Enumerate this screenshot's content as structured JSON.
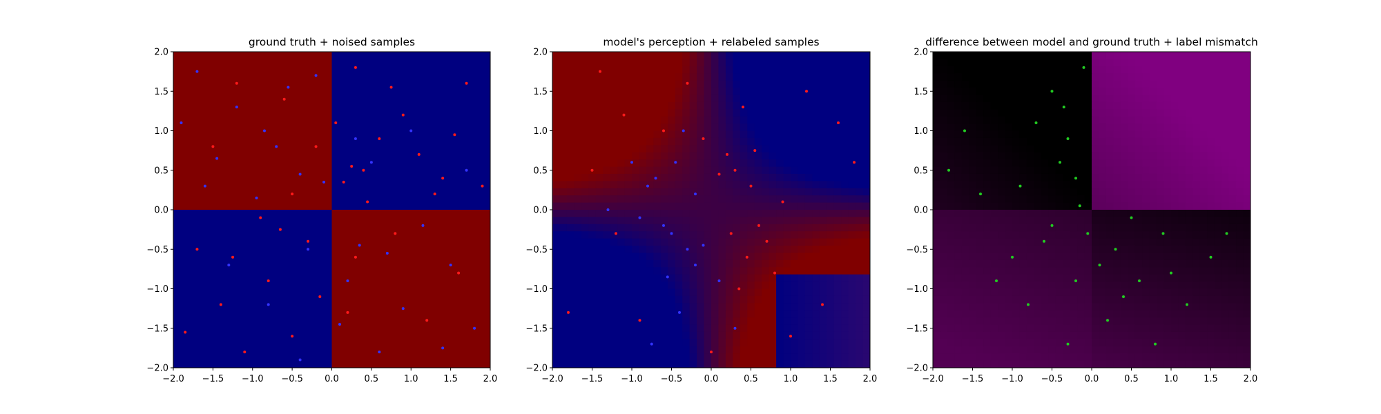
{
  "figure": {
    "background": "#ffffff"
  },
  "chart_data": [
    {
      "type": "scatter",
      "title": "ground truth + noised samples",
      "xlim": [
        -2.0,
        2.0
      ],
      "ylim": [
        -2.0,
        2.0
      ],
      "xticks": [
        "−2.0",
        "−1.5",
        "−1.0",
        "−0.5",
        "0.0",
        "0.5",
        "1.0",
        "1.5",
        "2.0"
      ],
      "yticks": [
        "−2.0",
        "−1.5",
        "−1.0",
        "−0.5",
        "0.0",
        "0.5",
        "1.0",
        "1.5",
        "2.0"
      ],
      "background": {
        "kind": "xor-quadrants",
        "quadrant_colors": {
          "top_left": "#800000",
          "top_right": "#000080",
          "bottom_left": "#000080",
          "bottom_right": "#800000"
        }
      },
      "series": [
        {
          "color": "#ff1a1a",
          "points": [
            [
              0.15,
              0.35
            ],
            [
              0.3,
              1.8
            ],
            [
              0.6,
              0.9
            ],
            [
              0.9,
              1.2
            ],
            [
              1.4,
              0.4
            ],
            [
              1.7,
              1.6
            ],
            [
              0.45,
              0.1
            ],
            [
              1.1,
              0.7
            ],
            [
              0.25,
              0.55
            ],
            [
              0.75,
              1.55
            ],
            [
              1.55,
              0.95
            ],
            [
              1.9,
              0.3
            ],
            [
              -0.3,
              -0.4
            ],
            [
              -0.8,
              -0.9
            ],
            [
              -1.4,
              -1.2
            ],
            [
              -0.5,
              -1.6
            ],
            [
              -1.7,
              -0.5
            ],
            [
              -1.1,
              -1.8
            ],
            [
              -0.15,
              -1.1
            ],
            [
              -0.65,
              -0.25
            ],
            [
              -1.25,
              -0.6
            ],
            [
              -1.85,
              -1.55
            ],
            [
              0.4,
              0.5
            ],
            [
              -0.2,
              0.8
            ],
            [
              0.3,
              -0.6
            ],
            [
              1.2,
              -1.4
            ],
            [
              0.8,
              -0.3
            ],
            [
              -0.6,
              1.4
            ],
            [
              -1.5,
              0.8
            ],
            [
              1.6,
              -0.8
            ],
            [
              -1.2,
              1.6
            ],
            [
              -0.5,
              0.2
            ],
            [
              0.2,
              -1.3
            ],
            [
              1.3,
              0.2
            ],
            [
              -0.9,
              -0.1
            ],
            [
              0.05,
              1.1
            ]
          ]
        },
        {
          "color": "#3333ff",
          "points": [
            [
              -0.4,
              0.45
            ],
            [
              -1.2,
              1.3
            ],
            [
              -0.7,
              0.8
            ],
            [
              -1.6,
              0.3
            ],
            [
              -0.2,
              1.7
            ],
            [
              -1.9,
              1.1
            ],
            [
              -0.95,
              0.15
            ],
            [
              -0.55,
              1.55
            ],
            [
              -1.45,
              0.65
            ],
            [
              -0.1,
              0.35
            ],
            [
              -1.7,
              1.75
            ],
            [
              -0.85,
              1.0
            ],
            [
              0.35,
              -0.45
            ],
            [
              0.9,
              -1.25
            ],
            [
              1.5,
              -0.7
            ],
            [
              0.6,
              -1.8
            ],
            [
              1.8,
              -1.5
            ],
            [
              0.2,
              -0.9
            ],
            [
              1.15,
              -0.2
            ],
            [
              0.7,
              -0.55
            ],
            [
              1.4,
              -1.75
            ],
            [
              0.1,
              -1.45
            ],
            [
              -0.3,
              -0.5
            ],
            [
              -0.8,
              -1.2
            ],
            [
              0.5,
              0.6
            ],
            [
              1.0,
              1.0
            ],
            [
              -1.3,
              -0.7
            ],
            [
              0.3,
              0.9
            ],
            [
              -0.4,
              -1.9
            ],
            [
              1.7,
              0.5
            ]
          ]
        }
      ]
    },
    {
      "type": "scatter",
      "title": "model's perception + relabeled samples",
      "xlim": [
        -2.0,
        2.0
      ],
      "ylim": [
        -2.0,
        2.0
      ],
      "xticks": [
        "−2.0",
        "−1.5",
        "−1.0",
        "−0.5",
        "0.0",
        "0.5",
        "1.0",
        "1.5",
        "2.0"
      ],
      "yticks": [
        "−2.0",
        "−1.5",
        "−1.0",
        "−0.5",
        "0.0",
        "0.5",
        "1.0",
        "1.5",
        "2.0"
      ],
      "background": {
        "kind": "model-gradient",
        "colors": {
          "negative": "#000080",
          "positive": "#800000",
          "corner_tint": "#3a0a6a"
        }
      },
      "series": [
        {
          "color": "#ff1a1a",
          "points": [
            [
              0.3,
              0.5
            ],
            [
              0.6,
              -0.2
            ],
            [
              0.45,
              -0.6
            ],
            [
              0.2,
              0.7
            ],
            [
              0.8,
              -0.8
            ],
            [
              0.5,
              0.3
            ],
            [
              0.35,
              -1.0
            ],
            [
              0.9,
              0.1
            ],
            [
              0.1,
              0.45
            ],
            [
              0.7,
              -0.4
            ],
            [
              -0.1,
              0.9
            ],
            [
              0.4,
              1.3
            ],
            [
              -0.3,
              1.6
            ],
            [
              -1.1,
              1.2
            ],
            [
              -1.5,
              0.5
            ],
            [
              -1.2,
              -0.3
            ],
            [
              -0.9,
              -1.4
            ],
            [
              1.4,
              -1.2
            ],
            [
              1.8,
              0.6
            ],
            [
              1.2,
              1.5
            ],
            [
              -1.8,
              -1.3
            ],
            [
              0.0,
              -1.8
            ],
            [
              -0.6,
              1.0
            ],
            [
              1.0,
              -1.6
            ],
            [
              0.25,
              -0.3
            ],
            [
              0.55,
              0.75
            ],
            [
              -1.4,
              1.75
            ],
            [
              1.6,
              1.1
            ]
          ]
        },
        {
          "color": "#3333ff",
          "points": [
            [
              -0.3,
              -0.5
            ],
            [
              -0.6,
              -0.2
            ],
            [
              -0.45,
              0.6
            ],
            [
              -0.2,
              -0.7
            ],
            [
              -0.8,
              0.3
            ],
            [
              -0.5,
              -0.3
            ],
            [
              -0.35,
              1.0
            ],
            [
              -0.9,
              -0.1
            ],
            [
              -0.1,
              -0.45
            ],
            [
              -0.7,
              0.4
            ],
            [
              0.1,
              -0.9
            ],
            [
              -0.4,
              -1.3
            ],
            [
              0.3,
              -1.5
            ],
            [
              -1.0,
              0.6
            ],
            [
              -0.2,
              0.2
            ],
            [
              -0.55,
              -0.85
            ],
            [
              -1.3,
              0.0
            ],
            [
              -0.75,
              -1.7
            ]
          ]
        }
      ]
    },
    {
      "type": "scatter",
      "title": "difference between model and ground truth + label mismatch",
      "xlim": [
        -2.0,
        2.0
      ],
      "ylim": [
        -2.0,
        2.0
      ],
      "xticks": [
        "−2.0",
        "−1.5",
        "−1.0",
        "−0.5",
        "0.0",
        "0.5",
        "1.0",
        "1.5",
        "2.0"
      ],
      "yticks": [
        "−2.0",
        "−1.5",
        "−1.0",
        "−0.5",
        "0.0",
        "0.5",
        "1.0",
        "1.5",
        "2.0"
      ],
      "background": {
        "kind": "difference-map",
        "colors": {
          "low": "#000000",
          "high": "#800080"
        }
      },
      "series": [
        {
          "color": "#22cc22",
          "points": [
            [
              -0.3,
              0.9
            ],
            [
              -0.5,
              1.5
            ],
            [
              -0.2,
              0.4
            ],
            [
              -0.7,
              1.1
            ],
            [
              -0.1,
              1.8
            ],
            [
              -0.4,
              0.6
            ],
            [
              -0.9,
              0.3
            ],
            [
              -1.4,
              0.2
            ],
            [
              -1.8,
              0.5
            ],
            [
              -0.6,
              -0.4
            ],
            [
              -0.2,
              -0.9
            ],
            [
              -0.8,
              -1.2
            ],
            [
              -1.0,
              -0.6
            ],
            [
              -0.3,
              -1.7
            ],
            [
              -0.5,
              -0.2
            ],
            [
              0.3,
              -0.5
            ],
            [
              0.6,
              -0.9
            ],
            [
              0.2,
              -1.4
            ],
            [
              0.9,
              -0.3
            ],
            [
              1.2,
              -1.2
            ],
            [
              0.5,
              -0.1
            ],
            [
              1.5,
              -0.6
            ],
            [
              1.7,
              -0.3
            ],
            [
              0.1,
              -0.7
            ],
            [
              0.8,
              -1.7
            ],
            [
              -1.2,
              -0.9
            ],
            [
              -0.15,
              0.05
            ],
            [
              -0.35,
              1.3
            ],
            [
              -1.6,
              1.0
            ],
            [
              0.4,
              -1.1
            ],
            [
              1.0,
              -0.8
            ],
            [
              -0.05,
              -0.3
            ]
          ]
        }
      ]
    }
  ]
}
